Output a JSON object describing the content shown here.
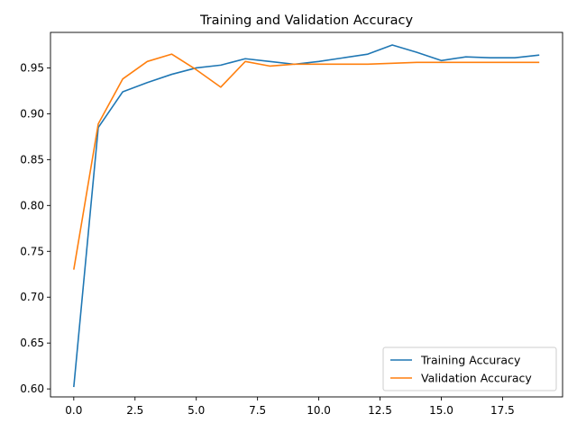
{
  "chart_data": {
    "type": "line",
    "title": "Training and Validation Accuracy",
    "xlabel": "",
    "ylabel": "",
    "x": [
      0,
      1,
      2,
      3,
      4,
      5,
      6,
      7,
      8,
      9,
      10,
      11,
      12,
      13,
      14,
      15,
      16,
      17,
      18,
      19
    ],
    "series": [
      {
        "name": "Training Accuracy",
        "color": "#1f77b4",
        "values": [
          0.602,
          0.885,
          0.924,
          0.934,
          0.943,
          0.95,
          0.953,
          0.96,
          0.957,
          0.954,
          0.957,
          0.961,
          0.965,
          0.975,
          0.967,
          0.958,
          0.962,
          0.961,
          0.961,
          0.964
        ]
      },
      {
        "name": "Validation Accuracy",
        "color": "#ff7f0e",
        "values": [
          0.73,
          0.889,
          0.938,
          0.957,
          0.965,
          0.948,
          0.929,
          0.957,
          0.952,
          0.954,
          0.954,
          0.954,
          0.954,
          0.955,
          0.956,
          0.956,
          0.956,
          0.956,
          0.956,
          0.956
        ]
      }
    ],
    "xlim": [
      -0.95,
      19.95
    ],
    "ylim": [
      0.5913,
      0.9887
    ],
    "xticks": [
      0.0,
      2.5,
      5.0,
      7.5,
      10.0,
      12.5,
      15.0,
      17.5
    ],
    "xtick_labels": [
      "0.0",
      "2.5",
      "5.0",
      "7.5",
      "10.0",
      "12.5",
      "15.0",
      "17.5"
    ],
    "yticks": [
      0.6,
      0.65,
      0.7,
      0.75,
      0.8,
      0.85,
      0.9,
      0.95
    ],
    "ytick_labels": [
      "0.60",
      "0.65",
      "0.70",
      "0.75",
      "0.80",
      "0.85",
      "0.90",
      "0.95"
    ],
    "grid": false,
    "legend_position": "lower right"
  }
}
